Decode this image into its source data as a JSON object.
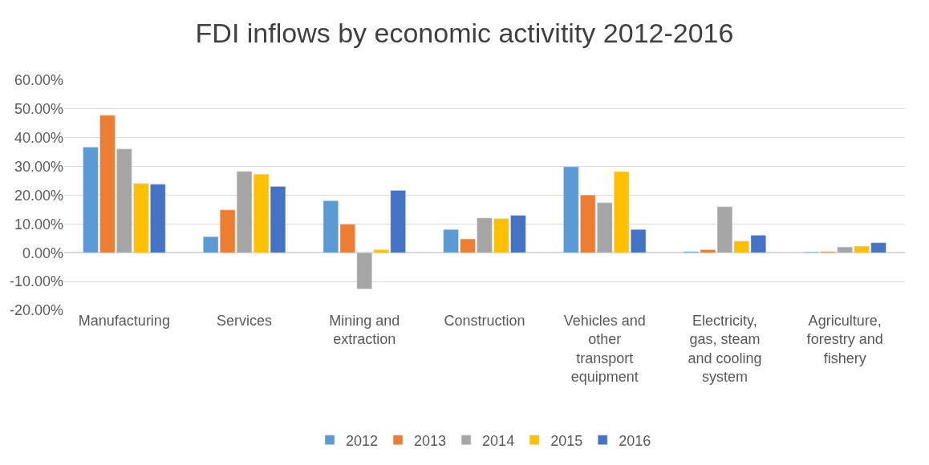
{
  "chart_data": {
    "type": "bar",
    "title": "FDI inflows by economic activitity 2012-2016",
    "categories": [
      "Manufacturing",
      "Services",
      "Mining and extraction",
      "Construction",
      "Vehicles and other transport equipment",
      "Electricity, gas, steam and cooling system",
      "Agriculture, forestry and fishery"
    ],
    "series": [
      {
        "name": "2012",
        "color": "#5b9bd5",
        "values": [
          36.7,
          5.6,
          18.1,
          8.1,
          29.9,
          0.4,
          0.3
        ]
      },
      {
        "name": "2013",
        "color": "#ed7d31",
        "values": [
          47.8,
          14.9,
          9.9,
          4.8,
          20.1,
          1.1,
          0.4
        ]
      },
      {
        "name": "2014",
        "color": "#a5a5a5",
        "values": [
          36.1,
          28.3,
          -12.6,
          12.1,
          17.4,
          16.0,
          2.0
        ]
      },
      {
        "name": "2015",
        "color": "#ffc000",
        "values": [
          24.1,
          27.3,
          1.1,
          11.9,
          28.2,
          4.1,
          2.3
        ]
      },
      {
        "name": "2016",
        "color": "#4472c4",
        "values": [
          23.8,
          23.1,
          21.7,
          13.0,
          8.1,
          6.1,
          3.5
        ]
      }
    ],
    "ylim": [
      -20,
      60
    ],
    "yticks": [
      {
        "value": -20,
        "label": "-20.00%"
      },
      {
        "value": -10,
        "label": "-10.00%"
      },
      {
        "value": 0,
        "label": "0.00%"
      },
      {
        "value": 10,
        "label": "10.00%"
      },
      {
        "value": 20,
        "label": "20.00%"
      },
      {
        "value": 30,
        "label": "30.00%"
      },
      {
        "value": 40,
        "label": "40.00%"
      },
      {
        "value": 50,
        "label": "50.00%"
      },
      {
        "value": 60,
        "label": "60.00%"
      }
    ],
    "grid": "y",
    "legend": "bottom"
  }
}
